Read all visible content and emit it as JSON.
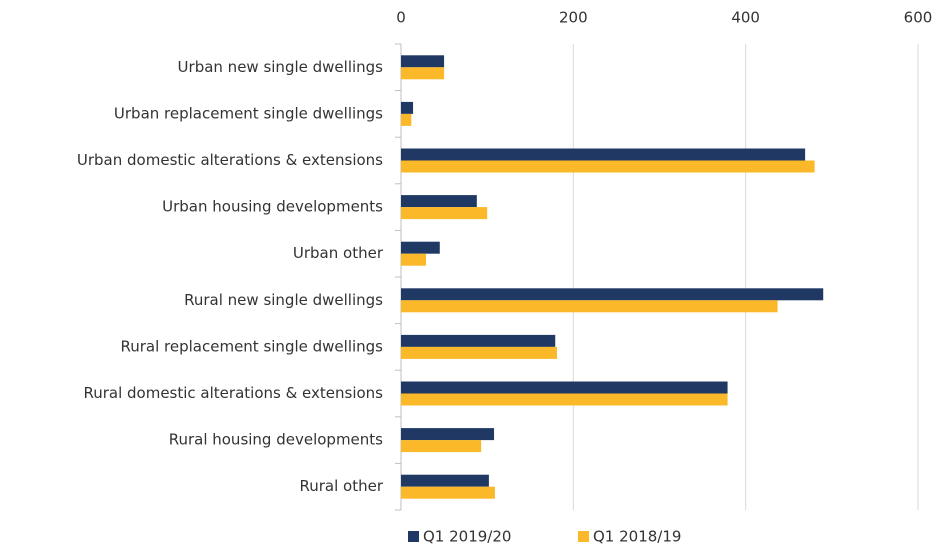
{
  "chart_data": {
    "type": "bar",
    "orientation": "horizontal",
    "categories": [
      "Urban new single dwellings",
      "Urban replacement single dwellings",
      "Urban domestic alterations & extensions",
      "Urban housing developments",
      "Urban other",
      "Rural new single dwellings",
      "Rural replacement single dwellings",
      "Rural domestic alterations & extensions",
      "Rural housing developments",
      "Rural other"
    ],
    "series": [
      {
        "name": "Q1 2019/20",
        "color": "#1f3864",
        "values": [
          50,
          14,
          469,
          88,
          45,
          490,
          179,
          379,
          108,
          102
        ]
      },
      {
        "name": "Q1 2018/19",
        "color": "#fbb829",
        "values": [
          50,
          12,
          480,
          100,
          29,
          437,
          181,
          379,
          93,
          109
        ]
      }
    ],
    "xlim": [
      0,
      600
    ],
    "xticks": [
      0,
      200,
      400,
      600
    ],
    "grid": true,
    "legend": "bottom"
  }
}
